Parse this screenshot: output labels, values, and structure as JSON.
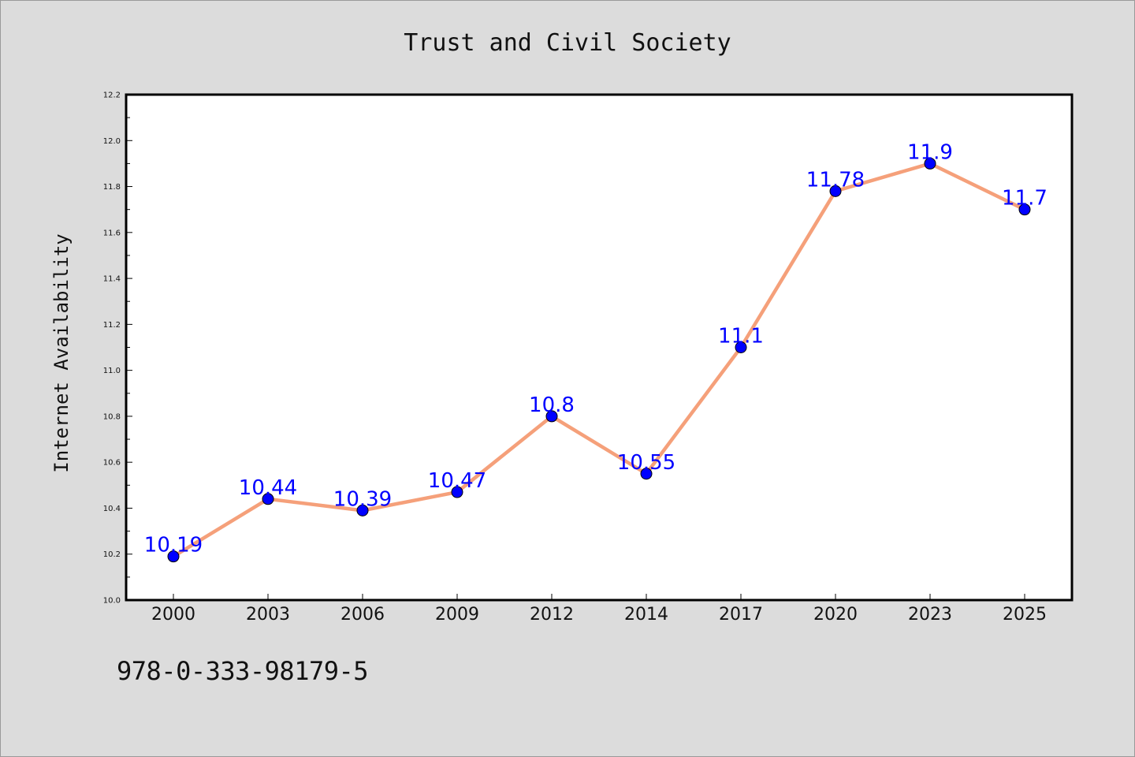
{
  "chart_data": {
    "type": "line",
    "title": "Trust and Civil Society",
    "xlabel": "",
    "ylabel": "Internet Availability",
    "categories": [
      "2000",
      "2003",
      "2006",
      "2009",
      "2012",
      "2014",
      "2017",
      "2020",
      "2023",
      "2025"
    ],
    "series": [
      {
        "values": [
          10.19,
          10.44,
          10.39,
          10.47,
          10.8,
          10.55,
          11.1,
          11.78,
          11.9,
          11.7
        ],
        "labels": [
          "10.19",
          "10.44",
          "10.39",
          "10.47",
          "10.8",
          "10.55",
          "11.1",
          "11.78",
          "11.9",
          "11.7"
        ],
        "line_color": "#f5a07a",
        "marker_color": "#0000ff",
        "label_color": "#0000ff"
      }
    ],
    "ylim": [
      10.0,
      12.2
    ],
    "yticks": [
      "10.0",
      "10.2",
      "10.4",
      "10.6",
      "10.8",
      "11.0",
      "11.2",
      "11.4",
      "11.6",
      "11.8",
      "12.0",
      "12.2"
    ],
    "grid": false,
    "legend": "none"
  },
  "footer": {
    "isbn": "978-0-333-98179-5"
  },
  "colors": {
    "background": "#dcdcdc",
    "plot_area": "#ffffff",
    "axis": "#000000"
  }
}
